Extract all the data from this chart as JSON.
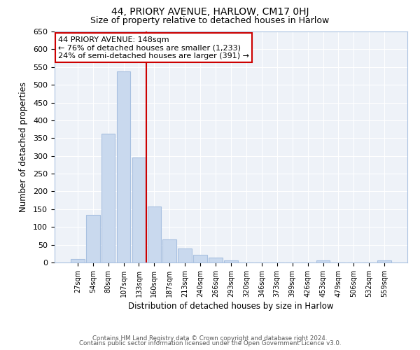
{
  "title1": "44, PRIORY AVENUE, HARLOW, CM17 0HJ",
  "title2": "Size of property relative to detached houses in Harlow",
  "xlabel": "Distribution of detached houses by size in Harlow",
  "ylabel": "Number of detached properties",
  "bar_labels": [
    "27sqm",
    "54sqm",
    "80sqm",
    "107sqm",
    "133sqm",
    "160sqm",
    "187sqm",
    "213sqm",
    "240sqm",
    "266sqm",
    "293sqm",
    "320sqm",
    "346sqm",
    "373sqm",
    "399sqm",
    "426sqm",
    "453sqm",
    "479sqm",
    "506sqm",
    "532sqm",
    "559sqm"
  ],
  "bar_values": [
    10,
    133,
    363,
    537,
    295,
    158,
    65,
    40,
    22,
    14,
    5,
    0,
    0,
    0,
    0,
    0,
    5,
    0,
    0,
    0,
    5
  ],
  "bar_color": "#c9d9ee",
  "bar_edge_color": "#a8c0e0",
  "vline_x": 4.5,
  "vline_color": "#cc0000",
  "annotation_title": "44 PRIORY AVENUE: 148sqm",
  "annotation_line1": "← 76% of detached houses are smaller (1,233)",
  "annotation_line2": "24% of semi-detached houses are larger (391) →",
  "annotation_box_color": "#ffffff",
  "annotation_box_edge": "#cc0000",
  "ylim": [
    0,
    650
  ],
  "yticks": [
    0,
    50,
    100,
    150,
    200,
    250,
    300,
    350,
    400,
    450,
    500,
    550,
    600,
    650
  ],
  "footer1": "Contains HM Land Registry data © Crown copyright and database right 2024.",
  "footer2": "Contains public sector information licensed under the Open Government Licence v3.0.",
  "bg_color": "#ffffff",
  "plot_bg_color": "#eef2f8",
  "grid_color": "#ffffff"
}
